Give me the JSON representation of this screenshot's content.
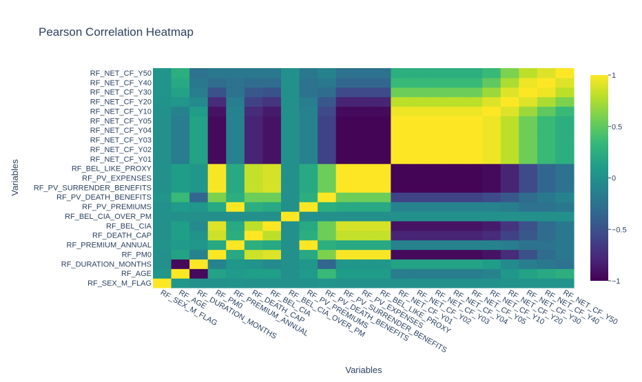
{
  "chart_data": {
    "type": "heatmap",
    "title": "Pearson Correlation Heatmap",
    "xlabel": "Variables",
    "ylabel": "Variables",
    "colorscale": "viridis",
    "zmin": -1,
    "zmax": 1,
    "colorbar_ticks": [
      1,
      0.5,
      0,
      -0.5,
      -1
    ],
    "colorbar_tick_labels": [
      "1",
      "0.5",
      "0",
      "−0.5",
      "−1"
    ],
    "variables": [
      "RF_SEX_M_FLAG",
      "RF_AGE",
      "RF_DURATION_MONTHS",
      "RF_PM0",
      "RF_PREMIUM_ANNUAL",
      "RF_DEATH_CAP",
      "RF_BEL_CIA",
      "RF_BEL_CIA_OVER_PM",
      "RF_PV_PREMIUMS",
      "RF_PV_DEATH_BENEFITS",
      "RF_PV_SURRENDER_BENEFITS",
      "RF_PV_EXPENSES",
      "RF_BEL_LIKE_PROXY",
      "RF_NET_CF_Y01",
      "RF_NET_CF_Y02",
      "RF_NET_CF_Y03",
      "RF_NET_CF_Y04",
      "RF_NET_CF_Y05",
      "RF_NET_CF_Y10",
      "RF_NET_CF_Y20",
      "RF_NET_CF_Y30",
      "RF_NET_CF_Y40",
      "RF_NET_CF_Y50"
    ],
    "z": [
      [
        1,
        0.05,
        0,
        0,
        0.02,
        0,
        0,
        0,
        0.01,
        0.03,
        0,
        0,
        0,
        0,
        0,
        0,
        0,
        0,
        0.01,
        0.02,
        0.03,
        0.03,
        0.03
      ],
      [
        0.05,
        1,
        -0.95,
        0.15,
        0.08,
        0.12,
        0.12,
        0,
        0.08,
        0.35,
        0.1,
        0.1,
        0.1,
        -0.15,
        -0.15,
        -0.15,
        -0.15,
        -0.15,
        -0.1,
        0.05,
        0.15,
        0.2,
        0.25
      ],
      [
        0,
        -0.95,
        1,
        -0.1,
        0.05,
        0.02,
        -0.05,
        0,
        0.05,
        -0.35,
        0.05,
        0.05,
        0.05,
        0.15,
        0.15,
        0.15,
        0.15,
        0.15,
        0.1,
        -0.05,
        -0.15,
        -0.2,
        -0.25
      ],
      [
        0,
        0.15,
        -0.1,
        1,
        0.2,
        0.85,
        0.9,
        0,
        0.2,
        0.6,
        0.98,
        0.98,
        0.98,
        -0.95,
        -0.95,
        -0.95,
        -0.95,
        -0.95,
        -0.9,
        -0.75,
        -0.5,
        -0.3,
        -0.2
      ],
      [
        0.02,
        0.08,
        0.05,
        0.2,
        1,
        0.25,
        0.2,
        0,
        1,
        0.25,
        0.2,
        0.2,
        0.2,
        -0.1,
        -0.1,
        -0.1,
        -0.1,
        -0.1,
        -0.1,
        -0.15,
        -0.25,
        -0.25,
        -0.2
      ],
      [
        0,
        0.12,
        0.02,
        0.85,
        0.25,
        1,
        0.8,
        0,
        0.25,
        0.55,
        0.82,
        0.82,
        0.82,
        -0.8,
        -0.8,
        -0.8,
        -0.8,
        -0.8,
        -0.75,
        -0.6,
        -0.45,
        -0.3,
        -0.2
      ],
      [
        0,
        0.12,
        -0.05,
        0.9,
        0.2,
        0.8,
        1,
        0,
        0.2,
        0.55,
        0.88,
        0.88,
        0.88,
        -0.9,
        -0.9,
        -0.9,
        -0.9,
        -0.9,
        -0.85,
        -0.7,
        -0.5,
        -0.3,
        -0.2
      ],
      [
        0,
        0,
        0,
        0,
        0,
        0,
        0,
        1,
        0,
        0,
        0,
        0,
        0,
        0,
        0,
        0,
        0,
        0,
        0,
        0,
        0,
        0,
        0
      ],
      [
        0.01,
        0.08,
        0.05,
        0.2,
        1,
        0.25,
        0.2,
        0,
        1,
        0.25,
        0.2,
        0.2,
        0.2,
        -0.1,
        -0.1,
        -0.1,
        -0.1,
        -0.1,
        -0.1,
        -0.15,
        -0.25,
        -0.25,
        -0.2
      ],
      [
        0.03,
        0.35,
        -0.35,
        0.6,
        0.25,
        0.55,
        0.55,
        0,
        0.25,
        1,
        0.55,
        0.55,
        0.55,
        -0.6,
        -0.6,
        -0.6,
        -0.6,
        -0.6,
        -0.55,
        -0.45,
        -0.3,
        -0.2,
        -0.1
      ],
      [
        0,
        0.1,
        0.05,
        0.98,
        0.2,
        0.82,
        0.88,
        0,
        0.2,
        0.55,
        1,
        1,
        1,
        -0.98,
        -0.98,
        -0.98,
        -0.98,
        -0.98,
        -0.95,
        -0.8,
        -0.55,
        -0.35,
        -0.25
      ],
      [
        0,
        0.1,
        0.05,
        0.98,
        0.2,
        0.82,
        0.88,
        0,
        0.2,
        0.55,
        1,
        1,
        1,
        -0.98,
        -0.98,
        -0.98,
        -0.98,
        -0.98,
        -0.95,
        -0.8,
        -0.55,
        -0.35,
        -0.25
      ],
      [
        0,
        0.1,
        0.05,
        0.98,
        0.2,
        0.82,
        0.88,
        0,
        0.2,
        0.55,
        1,
        1,
        1,
        -0.98,
        -0.98,
        -0.98,
        -0.98,
        -0.98,
        -0.95,
        -0.8,
        -0.55,
        -0.35,
        -0.25
      ],
      [
        0,
        -0.15,
        0.15,
        -0.95,
        -0.1,
        -0.8,
        -0.9,
        0,
        -0.1,
        -0.6,
        -0.98,
        -0.98,
        -0.98,
        1,
        1,
        1,
        1,
        1,
        0.95,
        0.8,
        0.55,
        0.35,
        0.25
      ],
      [
        0,
        -0.15,
        0.15,
        -0.95,
        -0.1,
        -0.8,
        -0.9,
        0,
        -0.1,
        -0.6,
        -0.98,
        -0.98,
        -0.98,
        1,
        1,
        1,
        1,
        1,
        0.95,
        0.8,
        0.55,
        0.35,
        0.25
      ],
      [
        0,
        -0.15,
        0.15,
        -0.95,
        -0.1,
        -0.8,
        -0.9,
        0,
        -0.1,
        -0.6,
        -0.98,
        -0.98,
        -0.98,
        1,
        1,
        1,
        1,
        1,
        0.95,
        0.8,
        0.55,
        0.35,
        0.25
      ],
      [
        0,
        -0.15,
        0.15,
        -0.95,
        -0.1,
        -0.8,
        -0.9,
        0,
        -0.1,
        -0.6,
        -0.98,
        -0.98,
        -0.98,
        1,
        1,
        1,
        1,
        1,
        0.95,
        0.8,
        0.55,
        0.35,
        0.25
      ],
      [
        0,
        -0.15,
        0.15,
        -0.95,
        -0.1,
        -0.8,
        -0.9,
        0,
        -0.1,
        -0.6,
        -0.98,
        -0.98,
        -0.98,
        1,
        1,
        1,
        1,
        1,
        0.95,
        0.8,
        0.55,
        0.35,
        0.25
      ],
      [
        0.01,
        -0.1,
        0.1,
        -0.9,
        -0.1,
        -0.75,
        -0.85,
        0,
        -0.1,
        -0.55,
        -0.95,
        -0.95,
        -0.95,
        0.95,
        0.95,
        0.95,
        0.95,
        0.95,
        1,
        0.9,
        0.7,
        0.5,
        0.35
      ],
      [
        0.02,
        0.05,
        -0.05,
        -0.75,
        -0.15,
        -0.6,
        -0.7,
        0,
        -0.15,
        -0.45,
        -0.8,
        -0.8,
        -0.8,
        0.8,
        0.8,
        0.8,
        0.8,
        0.8,
        0.9,
        1,
        0.9,
        0.75,
        0.6
      ],
      [
        0.03,
        0.15,
        -0.15,
        -0.5,
        -0.25,
        -0.45,
        -0.5,
        0,
        -0.25,
        -0.3,
        -0.55,
        -0.55,
        -0.55,
        0.55,
        0.55,
        0.55,
        0.55,
        0.55,
        0.7,
        0.9,
        1,
        0.95,
        0.8
      ],
      [
        0.03,
        0.2,
        -0.2,
        -0.3,
        -0.25,
        -0.3,
        -0.3,
        0,
        -0.25,
        -0.2,
        -0.35,
        -0.35,
        -0.35,
        0.35,
        0.35,
        0.35,
        0.35,
        0.35,
        0.5,
        0.75,
        0.95,
        1,
        0.9
      ],
      [
        0.03,
        0.25,
        -0.25,
        -0.2,
        -0.2,
        -0.2,
        -0.2,
        0,
        -0.2,
        -0.1,
        -0.25,
        -0.25,
        -0.25,
        0.25,
        0.25,
        0.25,
        0.25,
        0.25,
        0.35,
        0.6,
        0.8,
        0.9,
        1
      ]
    ]
  }
}
